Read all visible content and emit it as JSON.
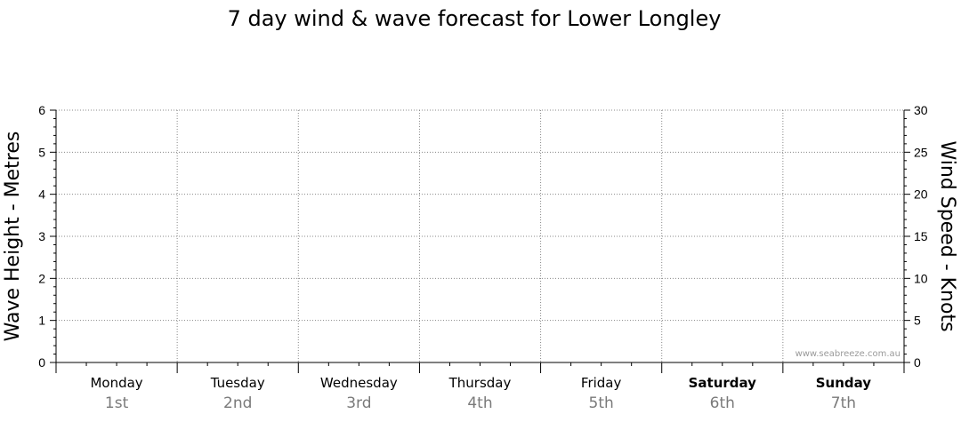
{
  "chart_data": {
    "type": "line",
    "title": "7 day wind & wave forecast for Lower Longley",
    "ylabel": "Wave Height - Metres",
    "ylabel_right": "Wind Speed - Knots",
    "ylim": [
      0,
      6
    ],
    "ylim_right": [
      0,
      30
    ],
    "yticks": [
      "0",
      "1",
      "2",
      "3",
      "4",
      "5",
      "6"
    ],
    "yticks_right": [
      "0",
      "5",
      "10",
      "15",
      "20",
      "25",
      "30"
    ],
    "days": [
      {
        "day": "Monday",
        "date": "1st",
        "bold": false
      },
      {
        "day": "Tuesday",
        "date": "2nd",
        "bold": false
      },
      {
        "day": "Wednesday",
        "date": "3rd",
        "bold": false
      },
      {
        "day": "Thursday",
        "date": "4th",
        "bold": false
      },
      {
        "day": "Friday",
        "date": "5th",
        "bold": false
      },
      {
        "day": "Saturday",
        "date": "6th",
        "bold": true
      },
      {
        "day": "Sunday",
        "date": "7th",
        "bold": true
      }
    ],
    "series": [],
    "grid": true,
    "watermark": "www.seabreeze.com.au"
  }
}
